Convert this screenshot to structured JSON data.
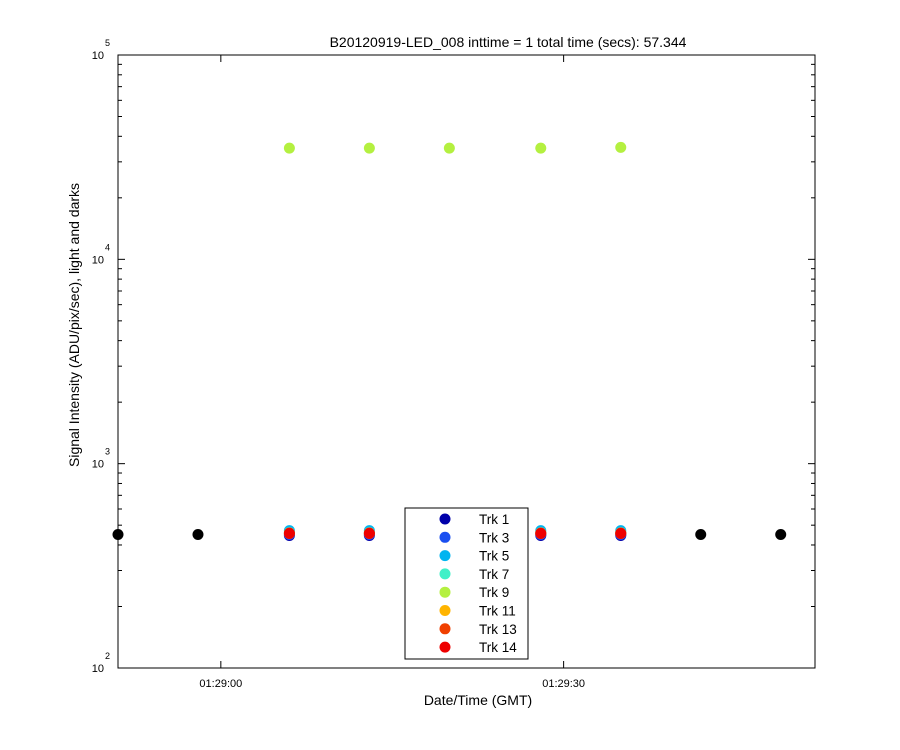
{
  "chart_data": {
    "type": "scatter",
    "title": "B20120919-LED_008 inttime = 1 total time (secs): 57.344",
    "xlabel": "Date/Time (GMT)",
    "ylabel": "Signal Intensity (ADU/pix/sec), light and darks",
    "y_scale": "log",
    "ylim": [
      100,
      100000
    ],
    "xlim": [
      "01:28:51",
      "01:29:52"
    ],
    "x_ticks": [
      {
        "value": "01:29:00",
        "label": "01:29:00"
      },
      {
        "value": "01:29:30",
        "label": "01:29:30"
      }
    ],
    "y_ticks": [
      {
        "value": 100,
        "base": "10",
        "exp": "2"
      },
      {
        "value": 1000,
        "base": "10",
        "exp": "3"
      },
      {
        "value": 10000,
        "base": "10",
        "exp": "4"
      },
      {
        "value": 100000,
        "base": "10",
        "exp": "5"
      }
    ],
    "legend_position": "bottom-center",
    "series": [
      {
        "name": "Trk 1",
        "color": "#0000aa",
        "points": [
          {
            "x": "01:29:06",
            "y": 445
          },
          {
            "x": "01:29:13",
            "y": 445
          },
          {
            "x": "01:29:20",
            "y": 445
          },
          {
            "x": "01:29:28",
            "y": 445
          },
          {
            "x": "01:29:35",
            "y": 445
          }
        ]
      },
      {
        "name": "Trk 3",
        "color": "#1a4ff0",
        "points": [
          {
            "x": "01:29:06",
            "y": 450
          },
          {
            "x": "01:29:13",
            "y": 450
          },
          {
            "x": "01:29:20",
            "y": 450
          },
          {
            "x": "01:29:28",
            "y": 450
          },
          {
            "x": "01:29:35",
            "y": 450
          }
        ]
      },
      {
        "name": "Trk 5",
        "color": "#00b4f0",
        "points": [
          {
            "x": "01:29:06",
            "y": 470
          },
          {
            "x": "01:29:13",
            "y": 470
          },
          {
            "x": "01:29:20",
            "y": 470
          },
          {
            "x": "01:29:28",
            "y": 470
          },
          {
            "x": "01:29:35",
            "y": 470
          }
        ]
      },
      {
        "name": "Trk 7",
        "color": "#40f0c8",
        "points": [
          {
            "x": "01:29:06",
            "y": 460
          },
          {
            "x": "01:29:13",
            "y": 460
          },
          {
            "x": "01:29:20",
            "y": 460
          },
          {
            "x": "01:29:28",
            "y": 460
          },
          {
            "x": "01:29:35",
            "y": 460
          }
        ]
      },
      {
        "name": "Trk 9",
        "color": "#b4f040",
        "points": [
          {
            "x": "01:29:06",
            "y": 35000
          },
          {
            "x": "01:29:13",
            "y": 35000
          },
          {
            "x": "01:29:20",
            "y": 35000
          },
          {
            "x": "01:29:28",
            "y": 35000
          },
          {
            "x": "01:29:35",
            "y": 35300
          }
        ]
      },
      {
        "name": "Trk 11",
        "color": "#ffb400",
        "points": [
          {
            "x": "01:29:06",
            "y": 455
          },
          {
            "x": "01:29:13",
            "y": 455
          },
          {
            "x": "01:29:20",
            "y": 455
          },
          {
            "x": "01:29:28",
            "y": 455
          },
          {
            "x": "01:29:35",
            "y": 455
          }
        ]
      },
      {
        "name": "Trk 13",
        "color": "#f04000",
        "points": [
          {
            "x": "01:29:06",
            "y": 458
          },
          {
            "x": "01:29:13",
            "y": 458
          },
          {
            "x": "01:29:20",
            "y": 458
          },
          {
            "x": "01:29:28",
            "y": 458
          },
          {
            "x": "01:29:35",
            "y": 458
          }
        ]
      },
      {
        "name": "Trk 14",
        "color": "#ee0000",
        "points": [
          {
            "x": "01:29:06",
            "y": 455
          },
          {
            "x": "01:29:13",
            "y": 455
          },
          {
            "x": "01:29:20",
            "y": 455
          },
          {
            "x": "01:29:28",
            "y": 455
          },
          {
            "x": "01:29:35",
            "y": 455
          }
        ]
      }
    ],
    "dark_points": {
      "color": "#000000",
      "points": [
        {
          "x": "01:28:51",
          "y": 450
        },
        {
          "x": "01:28:58",
          "y": 450
        },
        {
          "x": "01:29:42",
          "y": 450
        },
        {
          "x": "01:29:49",
          "y": 450
        }
      ]
    }
  }
}
